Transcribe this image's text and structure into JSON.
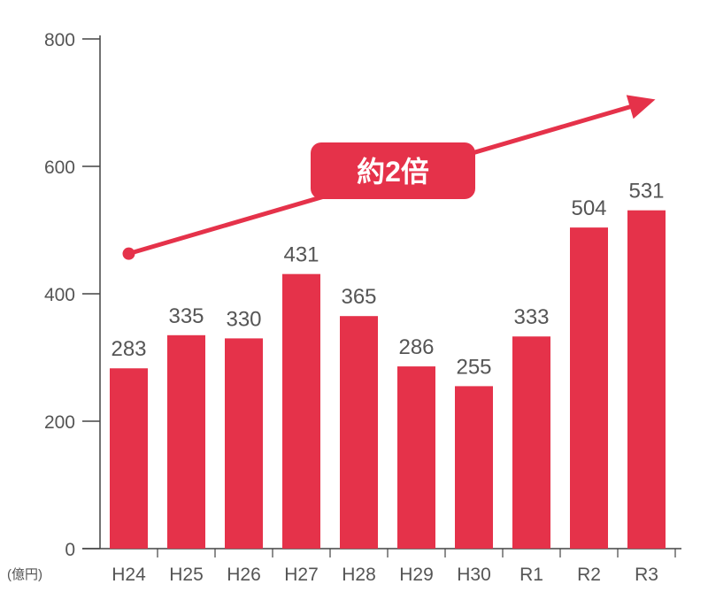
{
  "chart_data": {
    "type": "bar",
    "unit_label": "(億円)",
    "categories": [
      "H24",
      "H25",
      "H26",
      "H27",
      "H28",
      "H29",
      "H30",
      "R1",
      "R2",
      "R3"
    ],
    "values": [
      283,
      335,
      330,
      431,
      365,
      286,
      255,
      333,
      504,
      531
    ],
    "ylim": [
      0,
      800
    ],
    "yticks": [
      0,
      200,
      400,
      600,
      800
    ],
    "grid": false,
    "bar_color": "#e5324a",
    "annotation": {
      "text": "約2倍",
      "arrow_from": {
        "category": "H24",
        "value": 463
      },
      "arrow_to": {
        "category": "R3",
        "value": 705
      },
      "color": "#e5324a"
    }
  }
}
